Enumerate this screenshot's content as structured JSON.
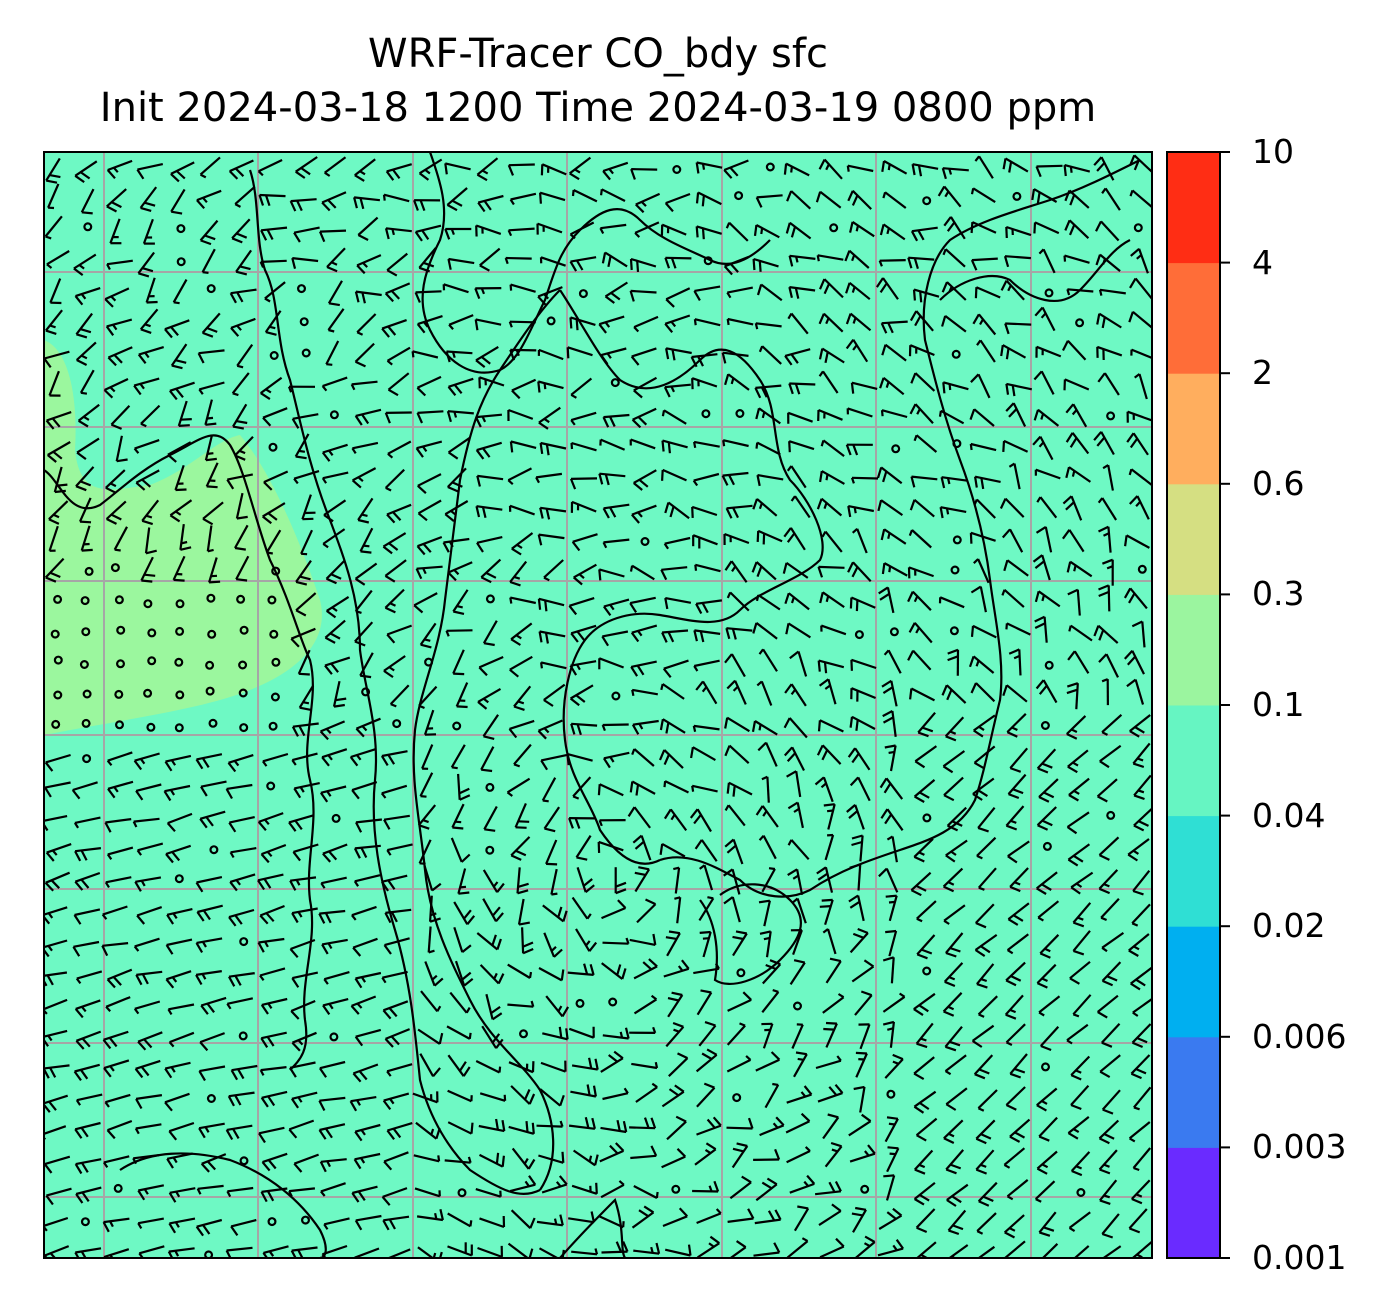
{
  "title": {
    "line1": "WRF-Tracer CO_bdy sfc",
    "line2": "Init 2024-03-18 1200 Time 2024-03-19 0800 ppm"
  },
  "colorbar": {
    "levels": [
      "0.001",
      "0.003",
      "0.006",
      "0.02",
      "0.04",
      "0.1",
      "0.3",
      "0.6",
      "2",
      "4",
      "10"
    ],
    "colors": [
      "#6a2bff",
      "#3a7af0",
      "#00aff0",
      "#2fdfd4",
      "#66f5c2",
      "#9bf59f",
      "#d5df82",
      "#ffae5e",
      "#ff6d38",
      "#ff2d14"
    ]
  },
  "map": {
    "background_fill": "#6ef9c4",
    "high_region_fill": "#9bf79e",
    "gridline_color": "#a6a6a6",
    "barb_color": "#000000"
  }
}
